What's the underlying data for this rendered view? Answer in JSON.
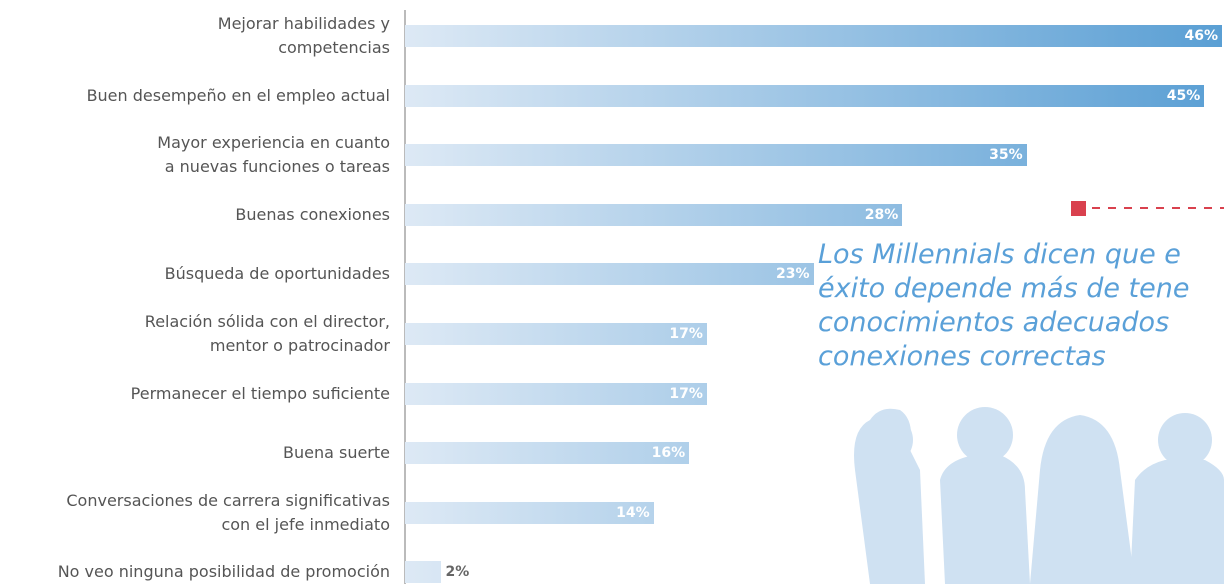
{
  "chart_data": {
    "type": "bar",
    "orientation": "horizontal",
    "categories": [
      "Mejorar habilidades y\ncompetencias",
      "Buen desempeño en el empleo actual",
      "Mayor experiencia en cuanto\na nuevas funciones o tareas",
      "Buenas conexiones",
      "Búsqueda de oportunidades",
      "Relación sólida con el director,\nmentor o patrocinador",
      "Permanecer el tiempo suficiente",
      "Buena suerte",
      "Conversaciones de carrera significativas\ncon el jefe inmediato",
      "No veo ninguna posibilidad de promoción"
    ],
    "values": [
      46,
      45,
      35,
      28,
      23,
      17,
      17,
      16,
      14,
      2
    ],
    "value_labels": [
      "46%",
      "45%",
      "35%",
      "28%",
      "23%",
      "17%",
      "17%",
      "16%",
      "14%",
      "2%"
    ],
    "color": "#5a9fd4",
    "annotation": [
      "Los Millennials dicen que e",
      "éxito depende más de tene",
      "conocimientos adecuados",
      "conexiones correctas"
    ]
  }
}
